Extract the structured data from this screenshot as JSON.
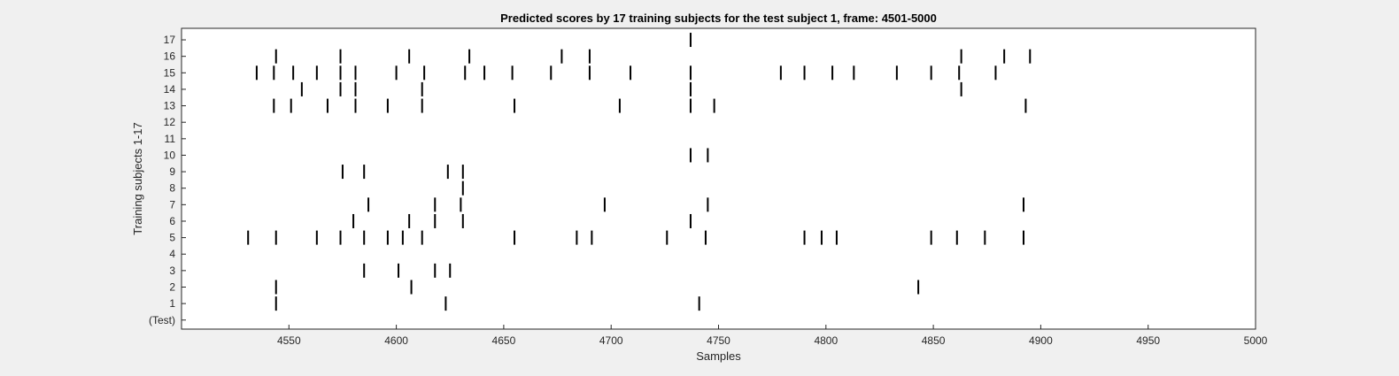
{
  "chart_data": {
    "type": "scatter",
    "title": "Predicted scores by 17 training subjects for the test subject 1, frame: 4501-5000",
    "xlabel": "Samples",
    "ylabel": "Training subjects 1-17",
    "xlim": [
      4500,
      5000
    ],
    "x_ticks": [
      4550,
      4600,
      4650,
      4700,
      4750,
      4800,
      4850,
      4900,
      4950,
      5000
    ],
    "x_tick_labels": [
      "4550",
      "4600",
      "4650",
      "4700",
      "4750",
      "4800",
      "4850",
      "4900",
      "4950",
      "5000"
    ],
    "y_tick_labels": [
      "(Test)",
      "1",
      "2",
      "3",
      "4",
      "5",
      "6",
      "7",
      "8",
      "9",
      "10",
      "11",
      "12",
      "13",
      "14",
      "15",
      "16",
      "17"
    ],
    "grid": false,
    "background": "#ffffff",
    "mark_color": "#000000",
    "series": [
      {
        "row": 0,
        "x": []
      },
      {
        "row": 1,
        "x": [
          4544,
          4623,
          4741
        ]
      },
      {
        "row": 2,
        "x": [
          4544,
          4607,
          4843
        ]
      },
      {
        "row": 3,
        "x": [
          4585,
          4601,
          4618,
          4625
        ]
      },
      {
        "row": 4,
        "x": []
      },
      {
        "row": 5,
        "x": [
          4531,
          4544,
          4563,
          4574,
          4585,
          4596,
          4603,
          4612,
          4655,
          4684,
          4691,
          4726,
          4744,
          4790,
          4798,
          4805,
          4849,
          4861,
          4874,
          4892
        ]
      },
      {
        "row": 6,
        "x": [
          4580,
          4606,
          4618,
          4631,
          4737
        ]
      },
      {
        "row": 7,
        "x": [
          4587,
          4618,
          4630,
          4697,
          4745,
          4892
        ]
      },
      {
        "row": 8,
        "x": [
          4631
        ]
      },
      {
        "row": 9,
        "x": [
          4575,
          4585,
          4624,
          4631
        ]
      },
      {
        "row": 10,
        "x": [
          4737,
          4745
        ]
      },
      {
        "row": 11,
        "x": []
      },
      {
        "row": 12,
        "x": []
      },
      {
        "row": 13,
        "x": [
          4543,
          4551,
          4568,
          4581,
          4596,
          4612,
          4655,
          4704,
          4737,
          4748,
          4893
        ]
      },
      {
        "row": 14,
        "x": [
          4556,
          4574,
          4581,
          4612,
          4737,
          4863
        ]
      },
      {
        "row": 15,
        "x": [
          4535,
          4543,
          4552,
          4563,
          4574,
          4581,
          4600,
          4613,
          4632,
          4641,
          4654,
          4672,
          4690,
          4709,
          4737,
          4779,
          4790,
          4803,
          4813,
          4833,
          4849,
          4862,
          4879
        ]
      },
      {
        "row": 16,
        "x": [
          4544,
          4574,
          4606,
          4634,
          4677,
          4690,
          4863,
          4883,
          4895
        ]
      },
      {
        "row": 17,
        "x": [
          4737
        ]
      }
    ]
  }
}
